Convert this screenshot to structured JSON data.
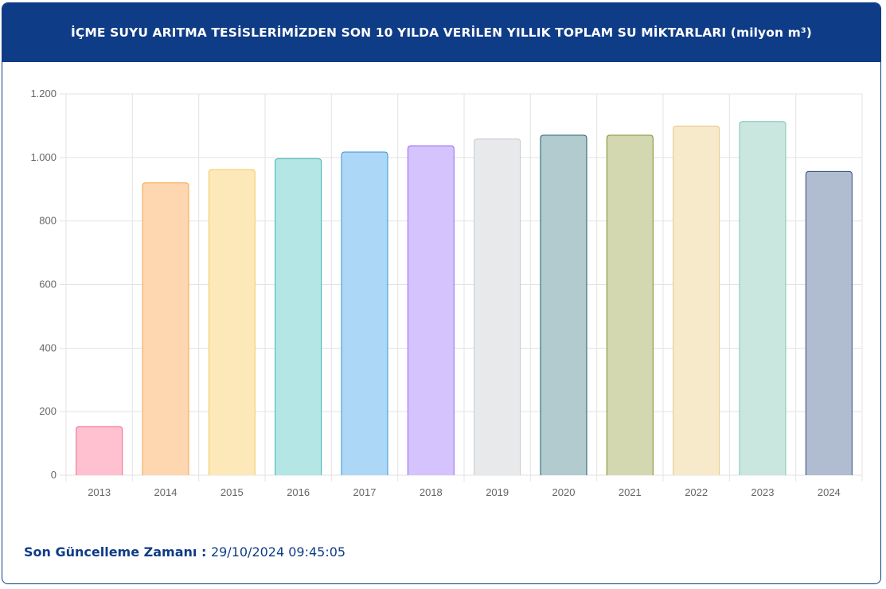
{
  "header": {
    "title": "İÇME SUYU ARITMA TESİSLERİMİZDEN SON 10 YILDA VERİLEN YILLIK TOPLAM SU MİKTARLARI (milyon m³)"
  },
  "footer": {
    "label": "Son Güncelleme Zamanı",
    "separator": " : ",
    "value": "29/10/2024 09:45:05"
  },
  "chart_data": {
    "type": "bar",
    "categories": [
      "2013",
      "2014",
      "2015",
      "2016",
      "2017",
      "2018",
      "2019",
      "2020",
      "2021",
      "2022",
      "2023",
      "2024"
    ],
    "values": [
      153,
      920,
      962,
      996,
      1017,
      1037,
      1058,
      1070,
      1070,
      1099,
      1113,
      956
    ],
    "ylim": [
      0,
      1200
    ],
    "yticks": [
      0,
      200,
      400,
      600,
      800,
      1000,
      1200
    ],
    "ytick_labels": [
      "0",
      "200",
      "400",
      "600",
      "800",
      "1.000",
      "1.200"
    ],
    "grid": true,
    "colors": [
      {
        "fill": "#ffc0cf",
        "stroke": "#f06a8f"
      },
      {
        "fill": "#fed6b0",
        "stroke": "#f4a44c"
      },
      {
        "fill": "#fde8b9",
        "stroke": "#f5c95f"
      },
      {
        "fill": "#b4e6e6",
        "stroke": "#3fb1b1"
      },
      {
        "fill": "#acd7f7",
        "stroke": "#3596d8"
      },
      {
        "fill": "#d4c3fd",
        "stroke": "#9966f0"
      },
      {
        "fill": "#e8e9eb",
        "stroke": "#c6c8cc"
      },
      {
        "fill": "#b2cbcf",
        "stroke": "#1f5a66"
      },
      {
        "fill": "#d3d8b1",
        "stroke": "#7a8a24"
      },
      {
        "fill": "#f7eacb",
        "stroke": "#e3c980"
      },
      {
        "fill": "#c9e6df",
        "stroke": "#7ec4b3"
      },
      {
        "fill": "#b0bdd1",
        "stroke": "#2f4c7c"
      }
    ]
  }
}
